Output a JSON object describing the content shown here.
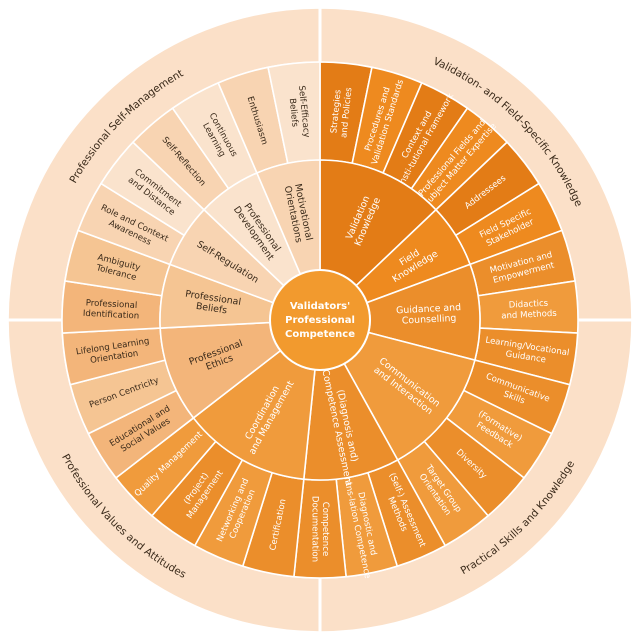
{
  "center": {
    "lines": [
      "Validators'",
      "Professional",
      "Competence"
    ],
    "color": "#f29a2e"
  },
  "palette": {
    "outer_ring": "#fbe0c8",
    "self_mgmt_dark": "#f8d4b2",
    "self_mgmt_light": "#fae3cd",
    "values_dark": "#f3b57a",
    "values_light": "#f5c593",
    "validation_dark": "#e37c16",
    "validation_light": "#ee8a1f",
    "practical_dark": "#eb8e2b",
    "practical_light": "#f09b3c",
    "text_dark": "#3a2a1a",
    "text_light": "#ffffff"
  },
  "outer_ring": [
    {
      "label": "Professional Self-Management",
      "tone": "self"
    },
    {
      "label": "Validation- and Field-Specific Knowledge",
      "tone": "validation"
    },
    {
      "label": "Practical Skills and Knowledge",
      "tone": "practical"
    },
    {
      "label": "Professional Values and Attitudes",
      "tone": "values"
    }
  ],
  "sectors": [
    {
      "label": "Validation Knowledge",
      "tone": "validation",
      "items": [
        "Strategies and Policies",
        "Procedures and Validation Standards",
        "Context and Insti-tutional Framework",
        "Professional Fields and Subject Matter Expertise"
      ]
    },
    {
      "label": "Field Knowledge",
      "tone": "validation",
      "items": [
        "Addressees",
        "Field Specific Stakeholder"
      ]
    },
    {
      "label": "Guidance and Counselling",
      "tone": "practical",
      "items": [
        "Motivation and Empowerment",
        "Didactics and Methods",
        "Learning/Vocational Guidance"
      ]
    },
    {
      "label": "Communication and Interaction",
      "tone": "practical",
      "items": [
        "Communicative Skills",
        "(Formative) Feedback",
        "Diversity",
        "Target Group Orientation"
      ]
    },
    {
      "label": "(Diagnosis and) Competence Assessment",
      "tone": "practical",
      "items": [
        "(Self-) Assessment Methods",
        "Diagnostic and Trans-lation Competence",
        "Competence Documentation"
      ]
    },
    {
      "label": "Coordination and Management",
      "tone": "practical",
      "items": [
        "Certification",
        "Networking and Cooperation",
        "(Project) Management",
        "Quality Management"
      ]
    },
    {
      "label": "Professional Ethics",
      "tone": "values",
      "items": [
        "Educational and Social Values",
        "Person Centricity",
        "Lifelong Learning Orientation"
      ]
    },
    {
      "label": "Professional Beliefs",
      "tone": "values",
      "items": [
        "Professional Identification",
        "Ambiguity Tolerance"
      ]
    },
    {
      "label": "Self-Regulation",
      "tone": "self",
      "items": [
        "Role and Context Awareness",
        "Commitment and Distance"
      ]
    },
    {
      "label": "Professional Development",
      "tone": "self",
      "items": [
        "Self-Reflection",
        "Continuous Learning"
      ]
    },
    {
      "label": "Motivational Orientations",
      "tone": "self",
      "items": [
        "Enthusiasm",
        "Self-Efficacy Beliefs"
      ]
    }
  ]
}
